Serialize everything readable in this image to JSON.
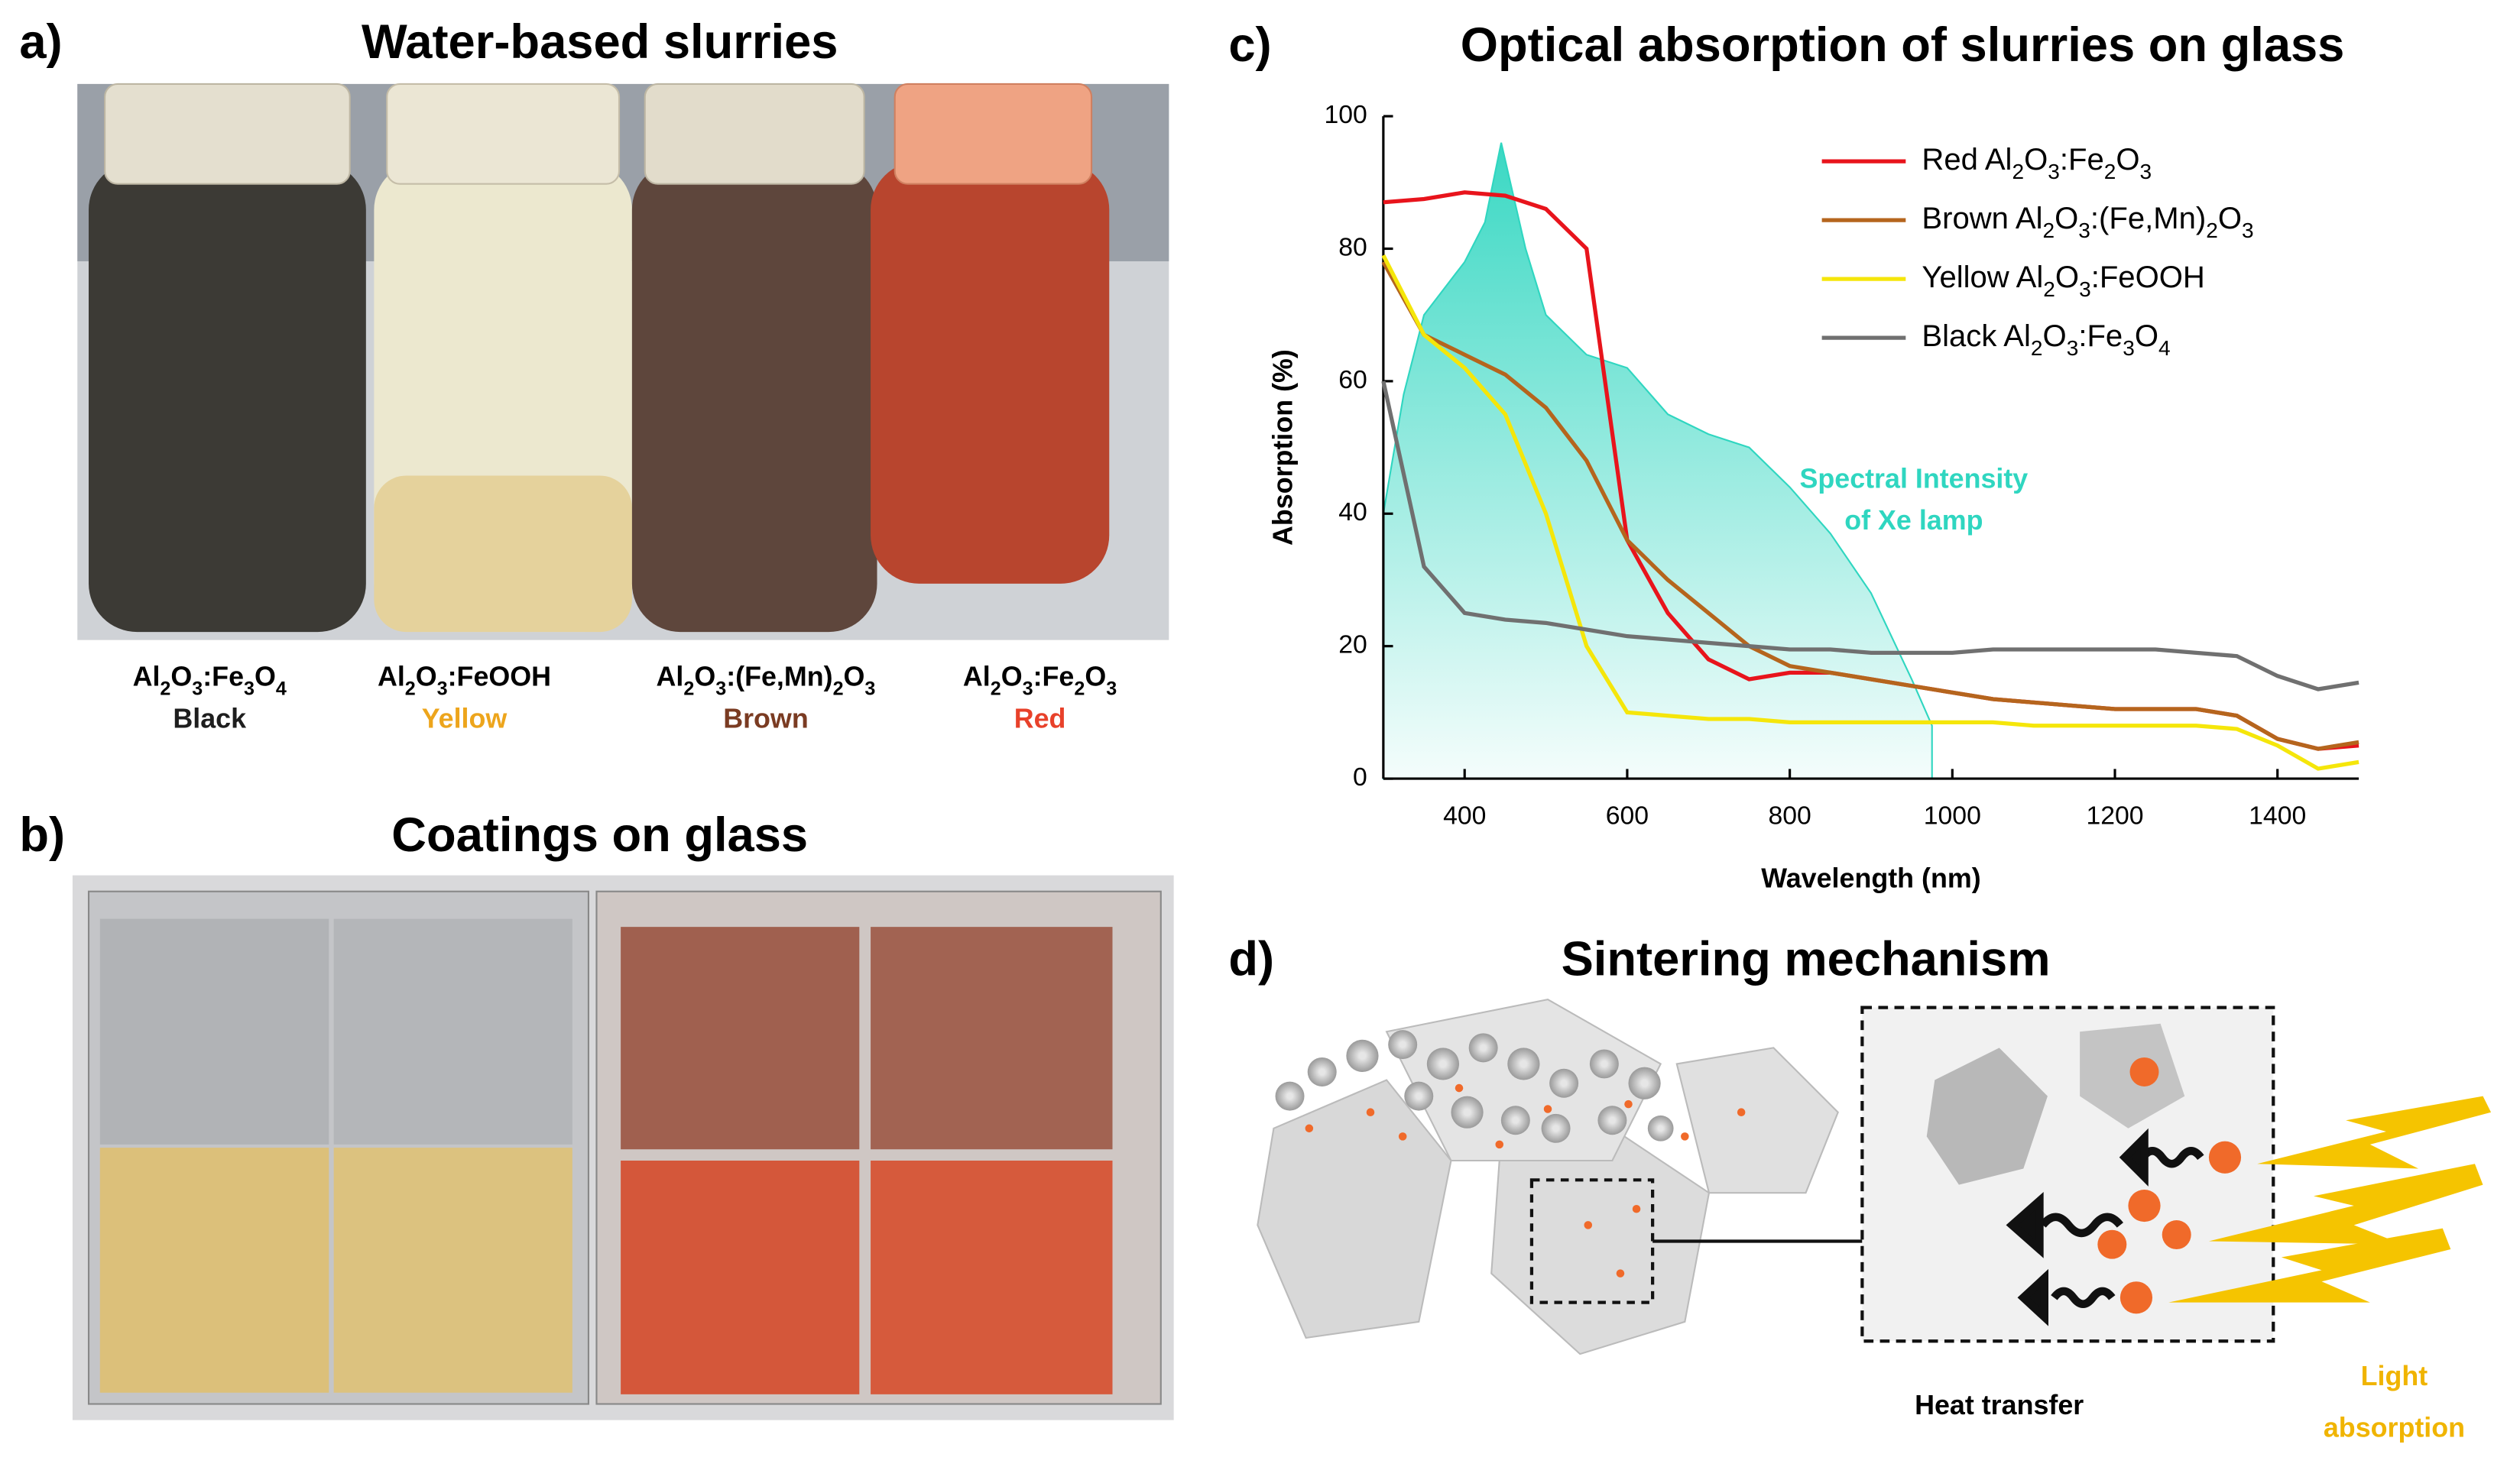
{
  "panels": {
    "a": {
      "label": "a)",
      "title": "Water-based slurries",
      "samples": [
        {
          "formula": "Al2O3:Fe3O4",
          "name": "Black",
          "color": "#1e1e1e"
        },
        {
          "formula": "Al2O3:FeOOH",
          "name": "Yellow",
          "color": "#eda51c"
        },
        {
          "formula": "Al2O3:(Fe,Mn)2O3",
          "name": "Brown",
          "color": "#7a3b22"
        },
        {
          "formula": "Al2O3:Fe2O3",
          "name": "Red",
          "color": "#e8412a"
        }
      ]
    },
    "b": {
      "label": "b)",
      "title": "Coatings on glass"
    },
    "d": {
      "label": "d)",
      "title": "Sintering mechanism",
      "heat": "Heat transfer",
      "light": [
        "Light",
        "absorption"
      ]
    }
  },
  "chart_data": {
    "type": "line",
    "panel_label": "c)",
    "title": "Optical absorption of slurries on glass",
    "x_label": "Wavelength (nm)",
    "y_label": "Absorption (%)",
    "xlim": [
      300,
      1500
    ],
    "ylim": [
      0,
      100
    ],
    "xticks": [
      400,
      600,
      800,
      1000,
      1200,
      1400
    ],
    "yticks": [
      0,
      20,
      40,
      60,
      80,
      100
    ],
    "x": [
      300,
      350,
      400,
      450,
      500,
      550,
      600,
      650,
      700,
      750,
      800,
      850,
      900,
      950,
      1000,
      1050,
      1100,
      1150,
      1200,
      1250,
      1300,
      1350,
      1400,
      1450,
      1500
    ],
    "series": [
      {
        "name": "Red Al2O3:Fe2O3",
        "color": "#e8141c",
        "values": [
          87,
          87.5,
          88.5,
          88,
          86,
          80,
          36,
          25,
          18,
          15,
          16,
          16,
          15,
          14,
          13,
          12,
          11.5,
          11,
          10.5,
          10.5,
          10.5,
          9.5,
          6,
          4.5,
          5
        ]
      },
      {
        "name": "Brown Al2O3:(Fe,Mn)2O3",
        "color": "#b5651d",
        "values": [
          78,
          67,
          64,
          61,
          56,
          48,
          36,
          30,
          25,
          20,
          17,
          16,
          15,
          14,
          13,
          12,
          11.5,
          11,
          10.5,
          10.5,
          10.5,
          9.5,
          6,
          4.5,
          5.5
        ]
      },
      {
        "name": "Yellow Al2O3:FeOOH",
        "color": "#f5e60a",
        "values": [
          79,
          67,
          62,
          55,
          40,
          20,
          10,
          9.5,
          9,
          9,
          8.5,
          8.5,
          8.5,
          8.5,
          8.5,
          8.5,
          8,
          8,
          8,
          8,
          8,
          7.5,
          5,
          1.5,
          2.5
        ]
      },
      {
        "name": "Black Al2O3:Fe3O4",
        "color": "#707070",
        "values": [
          60,
          32,
          25,
          24,
          23.5,
          22.5,
          21.5,
          21,
          20.5,
          20,
          19.5,
          19.5,
          19,
          19,
          19,
          19.5,
          19.5,
          19.5,
          19.5,
          19.5,
          19,
          18.5,
          15.5,
          13.5,
          14.5
        ]
      }
    ],
    "lamp": {
      "color": "#2fd6c0",
      "x": [
        300,
        325,
        350,
        375,
        400,
        425,
        445,
        475,
        500,
        550,
        600,
        650,
        700,
        750,
        800,
        850,
        900,
        950,
        975
      ],
      "values": [
        40,
        58,
        70,
        74,
        78,
        84,
        96,
        80,
        70,
        64,
        62,
        55,
        52,
        50,
        44,
        37,
        28,
        15,
        8
      ]
    },
    "annotation": [
      "Spectral Intensity",
      "of Xe lamp"
    ]
  }
}
